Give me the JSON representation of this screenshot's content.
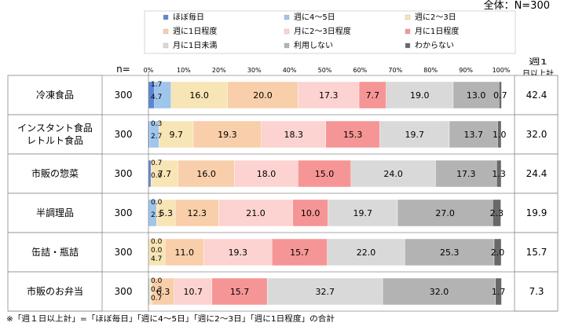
{
  "chart_data": {
    "type": "bar",
    "stacked": true,
    "orientation": "horizontal",
    "total_label": "全体：N=300",
    "n_header": "n=",
    "right_header": "週1日以上計",
    "footnote": "※「週１日以上計」=「ほぼ毎日」「週に4～5日」「週に2～3日」「週に1日程度」の合計",
    "legend_position": "top",
    "xlim": [
      0,
      100
    ],
    "ticks": [
      "0%",
      "10%",
      "20%",
      "30%",
      "40%",
      "50%",
      "60%",
      "70%",
      "80%",
      "90%",
      "100%"
    ],
    "series": [
      {
        "name": "ほぼ毎日",
        "color": "#5b86d6"
      },
      {
        "name": "週に4～5日",
        "color": "#9fc5ea"
      },
      {
        "name": "週に2～3日",
        "color": "#f8e5b6"
      },
      {
        "name": "週に1日程度",
        "color": "#f8cfaa"
      },
      {
        "name": "月に2～3日程度",
        "color": "#fcd3d0"
      },
      {
        "name": "月に1日程度",
        "color": "#f69595"
      },
      {
        "name": "月に1日未満",
        "color": "#d9d9d9"
      },
      {
        "name": "利用しない",
        "color": "#b3b3b3"
      },
      {
        "name": "わからない",
        "color": "#686868"
      }
    ],
    "categories": [
      {
        "label": [
          "冷凍食品"
        ],
        "n": "300",
        "total": "42.4",
        "values": [
          1.7,
          4.7,
          16.0,
          20.0,
          17.3,
          7.7,
          19.0,
          13.0,
          0.7
        ]
      },
      {
        "label": [
          "インスタント食品",
          "レトルト食品"
        ],
        "n": "300",
        "total": "32.0",
        "values": [
          0.3,
          2.7,
          9.7,
          19.3,
          18.3,
          15.3,
          19.7,
          13.7,
          1.0
        ]
      },
      {
        "label": [
          "市販の惣菜"
        ],
        "n": "300",
        "total": "24.4",
        "values": [
          0.7,
          0.0,
          7.7,
          16.0,
          18.0,
          15.0,
          24.0,
          17.3,
          1.3
        ]
      },
      {
        "label": [
          "半調理品"
        ],
        "n": "300",
        "total": "19.9",
        "values": [
          0.0,
          2.3,
          5.3,
          12.3,
          21.0,
          10.0,
          19.7,
          27.0,
          2.3
        ]
      },
      {
        "label": [
          "缶詰・瓶詰"
        ],
        "n": "300",
        "total": "15.7",
        "values": [
          0.0,
          0.0,
          4.7,
          11.0,
          19.3,
          15.7,
          22.0,
          25.3,
          2.0
        ]
      },
      {
        "label": [
          "市販のお弁当"
        ],
        "n": "300",
        "total": "7.3",
        "values": [
          0.0,
          0.3,
          0.7,
          6.3,
          10.7,
          15.7,
          32.7,
          32.0,
          1.7
        ]
      }
    ],
    "small_value_labels": [
      [
        "1.7",
        "4.7"
      ],
      [
        "0.3",
        "2.7"
      ],
      [
        "0.7",
        "0.0"
      ],
      [
        "0.0",
        "2.3"
      ],
      [
        "0.0",
        "0.0",
        "4.7"
      ],
      [
        "0.0",
        "0.3",
        "0.7"
      ]
    ],
    "segment_value_labels": [
      [
        "16.0",
        "20.0",
        "17.3",
        "7.7",
        "19.0",
        "13.0",
        "0.7"
      ],
      [
        "9.7",
        "19.3",
        "18.3",
        "15.3",
        "19.7",
        "13.7",
        "1.0"
      ],
      [
        "7.7",
        "16.0",
        "18.0",
        "15.0",
        "24.0",
        "17.3",
        "1.3"
      ],
      [
        "5.3",
        "12.3",
        "21.0",
        "10.0",
        "19.7",
        "27.0",
        "2.3"
      ],
      [
        "11.0",
        "19.3",
        "15.7",
        "22.0",
        "25.3",
        "2.0"
      ],
      [
        "6.3",
        "10.7",
        "15.7",
        "32.7",
        "32.0",
        "1.7"
      ]
    ]
  }
}
